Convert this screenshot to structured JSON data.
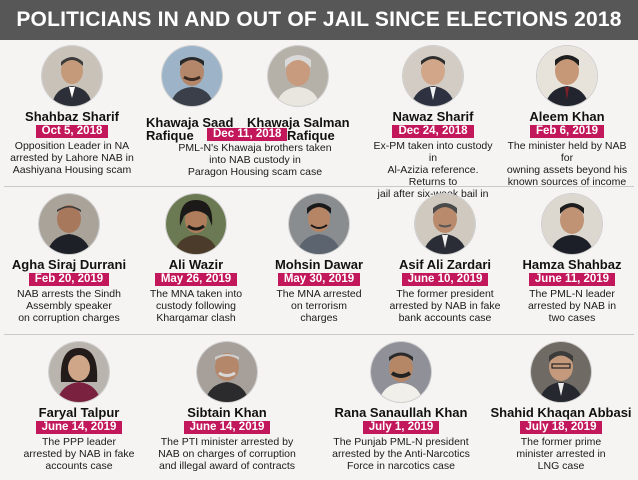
{
  "header": {
    "title": "POLITICIANS IN AND OUT OF JAIL SINCE ELECTIONS 2018"
  },
  "row1": {
    "shahbaz": {
      "name": "Shahbaz Sharif",
      "date": "Oct 5, 2018",
      "desc": [
        "Opposition Leader in NA",
        "arrested by Lahore NAB in",
        "Aashiyana Housing scam"
      ]
    },
    "khawaja": {
      "name1a": "Khawaja Saad",
      "name1b": "Rafique",
      "name2a": "Khawaja Salman",
      "name2b": "Rafique",
      "date": "Dec 11, 2018",
      "desc": [
        "PML-N's Khawaja brothers taken",
        "into NAB custody in",
        "Paragon Housing scam case"
      ]
    },
    "nawaz": {
      "name": "Nawaz Sharif",
      "date": "Dec 24, 2018",
      "desc": [
        "Ex-PM taken into custody in",
        "Al-Azizia reference. Returns to",
        "jail after six-week bail in May"
      ]
    },
    "aleem": {
      "name": "Aleem Khan",
      "date": "Feb 6, 2019",
      "desc": [
        "The minister held by NAB for",
        "owning assets beyond his",
        "known sources of income"
      ]
    }
  },
  "row2": [
    {
      "name": "Agha Siraj Durrani",
      "date": "Feb 20, 2019",
      "desc": [
        "NAB arrests the Sindh",
        "Assembly speaker",
        "on corruption charges"
      ]
    },
    {
      "name": "Ali Wazir",
      "date": "May 26, 2019",
      "desc": [
        "The MNA taken into",
        "custody following",
        "Kharqamar clash"
      ]
    },
    {
      "name": "Mohsin Dawar",
      "date": "May 30, 2019",
      "desc": [
        "The MNA arrested",
        "on terrorism",
        "charges"
      ]
    },
    {
      "name": "Asif Ali Zardari",
      "date": "June 10, 2019",
      "desc": [
        "The former president",
        "arrested by NAB in fake",
        "bank accounts case"
      ]
    },
    {
      "name": "Hamza Shahbaz",
      "date": "June 11, 2019",
      "desc": [
        "The PML-N leader",
        "arrested by NAB in",
        "two cases"
      ]
    }
  ],
  "row3": [
    {
      "name": "Faryal Talpur",
      "date": "June 14, 2019",
      "desc": [
        "The PPP leader",
        "arrested by NAB in fake",
        "accounts case"
      ]
    },
    {
      "name": "Sibtain Khan",
      "date": "June 14, 2019",
      "desc": [
        "The PTI minister arrested by",
        "NAB on charges of corruption",
        "and illegal award of contracts"
      ]
    },
    {
      "name": "Rana Sanaullah Khan",
      "date": "July 1, 2019",
      "desc": [
        "The Punjab PML-N president",
        "arrested by the Anti-Narcotics",
        "Force in narcotics case"
      ]
    },
    {
      "name": "Shahid Khaqan Abbasi",
      "date": "July 18, 2019",
      "desc": [
        "The former prime",
        "minister arrested in",
        "LNG case"
      ]
    }
  ],
  "colors": {
    "header_bg": "#575757",
    "date_bg": "#c2185b",
    "page_bg": "#f5f4f2"
  }
}
